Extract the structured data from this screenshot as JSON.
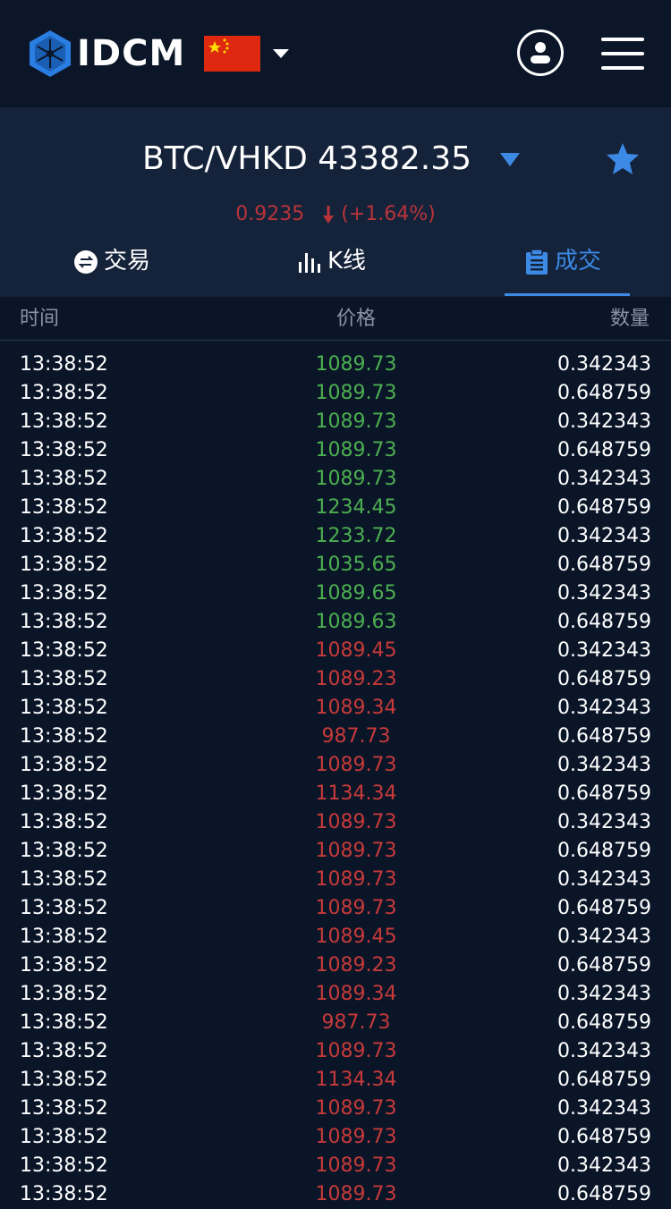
{
  "header": {
    "logo_text": "IDCM",
    "flag": "china-flag",
    "user_icon": "user-icon",
    "menu_icon": "hamburger-menu-icon"
  },
  "market": {
    "title": "BTC/VHKD 43382.35",
    "change_value": "0.9235",
    "change_percent": "(+1.64%)",
    "change_color": "#b8343a",
    "accent": "#3d8ae6"
  },
  "tabs": [
    {
      "label": "交易",
      "icon": "exchange-icon",
      "active": false
    },
    {
      "label": "K线",
      "icon": "candlestick-icon",
      "active": false
    },
    {
      "label": "成交",
      "icon": "clipboard-icon",
      "active": true
    }
  ],
  "columns": {
    "time": "时间",
    "price": "价格",
    "qty": "数量"
  },
  "colors": {
    "up": "#4caf50",
    "down": "#c73a3a",
    "background": "#0a1528"
  },
  "trades": [
    {
      "time": "13:38:52",
      "price": "1089.73",
      "qty": "0.342343",
      "dir": "up"
    },
    {
      "time": "13:38:52",
      "price": "1089.73",
      "qty": "0.648759",
      "dir": "up"
    },
    {
      "time": "13:38:52",
      "price": "1089.73",
      "qty": "0.342343",
      "dir": "up"
    },
    {
      "time": "13:38:52",
      "price": "1089.73",
      "qty": "0.648759",
      "dir": "up"
    },
    {
      "time": "13:38:52",
      "price": "1089.73",
      "qty": "0.342343",
      "dir": "up"
    },
    {
      "time": "13:38:52",
      "price": "1234.45",
      "qty": "0.648759",
      "dir": "up"
    },
    {
      "time": "13:38:52",
      "price": "1233.72",
      "qty": "0.342343",
      "dir": "up"
    },
    {
      "time": "13:38:52",
      "price": "1035.65",
      "qty": "0.648759",
      "dir": "up"
    },
    {
      "time": "13:38:52",
      "price": "1089.65",
      "qty": "0.342343",
      "dir": "up"
    },
    {
      "time": "13:38:52",
      "price": "1089.63",
      "qty": "0.648759",
      "dir": "up"
    },
    {
      "time": "13:38:52",
      "price": "1089.45",
      "qty": "0.342343",
      "dir": "down"
    },
    {
      "time": "13:38:52",
      "price": "1089.23",
      "qty": "0.648759",
      "dir": "down"
    },
    {
      "time": "13:38:52",
      "price": "1089.34",
      "qty": "0.342343",
      "dir": "down"
    },
    {
      "time": "13:38:52",
      "price": "987.73",
      "qty": "0.648759",
      "dir": "down"
    },
    {
      "time": "13:38:52",
      "price": "1089.73",
      "qty": "0.342343",
      "dir": "down"
    },
    {
      "time": "13:38:52",
      "price": "1134.34",
      "qty": "0.648759",
      "dir": "down"
    },
    {
      "time": "13:38:52",
      "price": "1089.73",
      "qty": "0.342343",
      "dir": "down"
    },
    {
      "time": "13:38:52",
      "price": "1089.73",
      "qty": "0.648759",
      "dir": "down"
    },
    {
      "time": "13:38:52",
      "price": "1089.73",
      "qty": "0.342343",
      "dir": "down"
    },
    {
      "time": "13:38:52",
      "price": "1089.73",
      "qty": "0.648759",
      "dir": "down"
    },
    {
      "time": "13:38:52",
      "price": "1089.45",
      "qty": "0.342343",
      "dir": "down"
    },
    {
      "time": "13:38:52",
      "price": "1089.23",
      "qty": "0.648759",
      "dir": "down"
    },
    {
      "time": "13:38:52",
      "price": "1089.34",
      "qty": "0.342343",
      "dir": "down"
    },
    {
      "time": "13:38:52",
      "price": "987.73",
      "qty": "0.648759",
      "dir": "down"
    },
    {
      "time": "13:38:52",
      "price": "1089.73",
      "qty": "0.342343",
      "dir": "down"
    },
    {
      "time": "13:38:52",
      "price": "1134.34",
      "qty": "0.648759",
      "dir": "down"
    },
    {
      "time": "13:38:52",
      "price": "1089.73",
      "qty": "0.342343",
      "dir": "down"
    },
    {
      "time": "13:38:52",
      "price": "1089.73",
      "qty": "0.648759",
      "dir": "down"
    },
    {
      "time": "13:38:52",
      "price": "1089.73",
      "qty": "0.342343",
      "dir": "down"
    },
    {
      "time": "13:38:52",
      "price": "1089.73",
      "qty": "0.648759",
      "dir": "down"
    }
  ]
}
